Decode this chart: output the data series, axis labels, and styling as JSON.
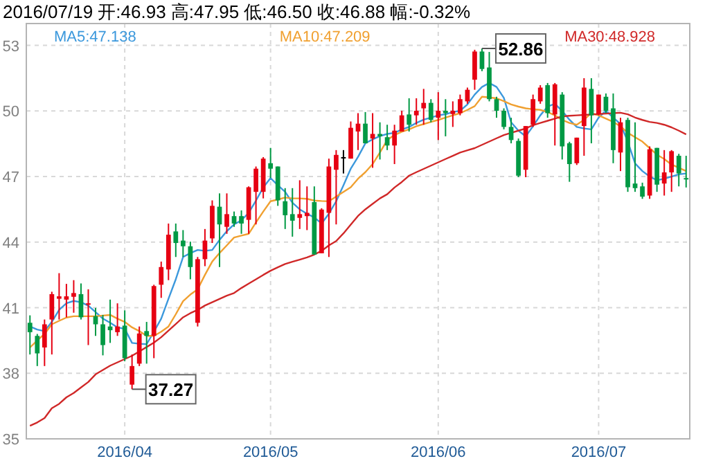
{
  "chart_data": {
    "type": "candlestick",
    "title": "2016/07/19 开:46.93 高:47.95 低:46.50 收:46.88 幅:-0.32%",
    "categories": [
      null,
      null,
      null,
      null,
      null,
      null,
      null,
      null,
      null,
      null,
      null,
      null,
      null,
      "2016/04",
      null,
      null,
      null,
      null,
      null,
      null,
      null,
      null,
      null,
      null,
      null,
      null,
      null,
      null,
      null,
      null,
      null,
      null,
      null,
      "2016/05",
      null,
      null,
      null,
      null,
      null,
      null,
      null,
      null,
      null,
      null,
      null,
      null,
      null,
      null,
      null,
      null,
      null,
      null,
      null,
      null,
      null,
      null,
      "2016/06",
      null,
      null,
      null,
      null,
      null,
      null,
      null,
      null,
      null,
      null,
      null,
      null,
      null,
      null,
      null,
      null,
      null,
      null,
      null,
      null,
      null,
      "2016/07",
      null,
      null,
      null,
      null,
      null,
      null,
      null,
      null,
      null,
      null,
      null,
      null
    ],
    "ohlc": [
      [
        40.31,
        40.65,
        38.86,
        39.88
      ],
      [
        39.71,
        39.8,
        38.33,
        38.91
      ],
      [
        39.18,
        40.46,
        38.33,
        40.24
      ],
      [
        40.46,
        41.73,
        38.86,
        41.62
      ],
      [
        41.41,
        42.58,
        40.46,
        41.52
      ],
      [
        41.37,
        42.09,
        40.56,
        41.52
      ],
      [
        41.5,
        42.26,
        40.77,
        41.67
      ],
      [
        41.62,
        42.11,
        40.46,
        40.56
      ],
      [
        41.16,
        41.84,
        39.29,
        41.2
      ],
      [
        40.61,
        40.99,
        39.71,
        40.24
      ],
      [
        40.24,
        40.67,
        38.82,
        39.29
      ],
      [
        40.14,
        41.37,
        39.39,
        39.97
      ],
      [
        39.88,
        41.2,
        39.71,
        40.14
      ],
      [
        40.18,
        40.88,
        38.55,
        38.69
      ],
      [
        37.48,
        38.86,
        37.27,
        38.33
      ],
      [
        38.44,
        40.14,
        38.33,
        39.82
      ],
      [
        39.93,
        40.35,
        38.44,
        39.71
      ],
      [
        39.71,
        42.05,
        38.69,
        41.99
      ],
      [
        42.05,
        43.11,
        41.45,
        42.86
      ],
      [
        42.75,
        44.85,
        42.26,
        44.34
      ],
      [
        44.49,
        44.85,
        43.32,
        43.96
      ],
      [
        44.07,
        44.55,
        43.32,
        43.81
      ],
      [
        43.81,
        44.02,
        42.3,
        42.86
      ],
      [
        40.31,
        43.32,
        40.14,
        43.22
      ],
      [
        43.22,
        44.6,
        42.9,
        44.07
      ],
      [
        44.17,
        45.91,
        43.96,
        45.66
      ],
      [
        45.62,
        46.23,
        42.86,
        44.81
      ],
      [
        44.7,
        46.23,
        44.38,
        45.28
      ],
      [
        45.19,
        45.4,
        44.7,
        44.85
      ],
      [
        45.19,
        45.45,
        44.38,
        44.85
      ],
      [
        45.02,
        46.55,
        44.38,
        46.51
      ],
      [
        46.3,
        47.46,
        44.81,
        47.36
      ],
      [
        46.3,
        47.89,
        46.0,
        47.82
      ],
      [
        47.61,
        48.31,
        46.93,
        47.36
      ],
      [
        47.46,
        47.46,
        45.66,
        45.91
      ],
      [
        45.87,
        46.47,
        44.6,
        45.23
      ],
      [
        45.28,
        46.47,
        44.25,
        44.98
      ],
      [
        45.11,
        46.83,
        44.6,
        45.28
      ],
      [
        45.19,
        46.55,
        44.55,
        45.34
      ],
      [
        45.83,
        46.55,
        43.43,
        43.43
      ],
      [
        43.49,
        45.55,
        43.49,
        45.49
      ],
      [
        45.34,
        47.82,
        43.32,
        47.46
      ],
      [
        47.31,
        48.21,
        44.81,
        47.99
      ],
      [
        47.89,
        48.21,
        47.14,
        47.89
      ],
      [
        47.82,
        49.52,
        47.82,
        49.23
      ],
      [
        49.06,
        49.9,
        48.21,
        49.42
      ],
      [
        49.42,
        49.95,
        48.52,
        48.52
      ],
      [
        48.74,
        49.9,
        47.4,
        48.95
      ],
      [
        48.95,
        49.48,
        47.78,
        48.84
      ],
      [
        48.8,
        49.37,
        48.21,
        48.42
      ],
      [
        48.42,
        49.37,
        47.57,
        49.1
      ],
      [
        49.06,
        50.01,
        49.06,
        49.8
      ],
      [
        49.84,
        50.58,
        49.06,
        49.37
      ],
      [
        49.8,
        50.58,
        49.37,
        50.01
      ],
      [
        50.12,
        51.01,
        49.37,
        50.37
      ],
      [
        50.37,
        50.54,
        49.48,
        49.59
      ],
      [
        49.69,
        50.86,
        48.67,
        50.01
      ],
      [
        50.01,
        50.54,
        48.84,
        49.9
      ],
      [
        49.86,
        50.44,
        49.27,
        50.01
      ],
      [
        49.9,
        50.75,
        49.8,
        50.54
      ],
      [
        50.44,
        51.07,
        50.33,
        50.97
      ],
      [
        51.43,
        52.8,
        50.97,
        52.72
      ],
      [
        52.72,
        52.86,
        51.82,
        51.92
      ],
      [
        51.99,
        52.7,
        50.44,
        50.54
      ],
      [
        50.54,
        50.65,
        49.69,
        50.01
      ],
      [
        50.01,
        50.12,
        49.16,
        49.27
      ],
      [
        49.27,
        49.69,
        48.52,
        48.67
      ],
      [
        48.63,
        48.74,
        46.97,
        47.04
      ],
      [
        47.31,
        49.31,
        46.97,
        49.31
      ],
      [
        49.37,
        50.75,
        49.27,
        50.54
      ],
      [
        50.44,
        51.18,
        50.33,
        51.07
      ],
      [
        51.18,
        51.28,
        49.69,
        49.9
      ],
      [
        49.84,
        51.28,
        48.42,
        51.22
      ],
      [
        50.75,
        50.86,
        47.78,
        48.38
      ],
      [
        48.52,
        48.59,
        46.76,
        47.57
      ],
      [
        47.61,
        48.78,
        47.53,
        48.78
      ],
      [
        49.31,
        51.5,
        47.95,
        51.07
      ],
      [
        51.01,
        51.5,
        48.52,
        49.8
      ],
      [
        49.86,
        50.75,
        49.8,
        50.75
      ],
      [
        50.65,
        50.8,
        49.9,
        50.01
      ],
      [
        50.12,
        50.8,
        47.61,
        48.21
      ],
      [
        48.1,
        49.69,
        47.25,
        49.48
      ],
      [
        49.59,
        49.69,
        46.3,
        46.51
      ],
      [
        46.68,
        49.48,
        46.3,
        46.47
      ],
      [
        46.55,
        46.72,
        45.98,
        46.08
      ],
      [
        46.13,
        48.38,
        45.98,
        48.25
      ],
      [
        48.31,
        48.31,
        46.3,
        46.63
      ],
      [
        46.68,
        48.21,
        46.13,
        47.19
      ],
      [
        47.19,
        48.21,
        46.3,
        48.16
      ],
      [
        47.95,
        48.04,
        46.55,
        47.14
      ],
      [
        46.93,
        47.95,
        46.5,
        46.88
      ]
    ],
    "colors": [
      "#009944",
      "#009944",
      "#e60012",
      "#e60012",
      "#e60012",
      "#e60012",
      "#e60012",
      "#009944",
      "#e60012",
      "#009944",
      "#009944",
      "#009944",
      "#e60012",
      "#009944",
      "#e60012",
      "#e60012",
      "#009944",
      "#e60012",
      "#e60012",
      "#e60012",
      "#009944",
      "#009944",
      "#009944",
      "#e60012",
      "#e60012",
      "#e60012",
      "#009944",
      "#e60012",
      "#009944",
      "#009944",
      "#e60012",
      "#e60012",
      "#e60012",
      "#009944",
      "#009944",
      "#009944",
      "#009944",
      "#e60012",
      "#e60012",
      "#009944",
      "#e60012",
      "#e60012",
      "#e60012",
      "#000000",
      "#e60012",
      "#e60012",
      "#009944",
      "#e60012",
      "#009944",
      "#009944",
      "#e60012",
      "#e60012",
      "#009944",
      "#e60012",
      "#e60012",
      "#009944",
      "#e60012",
      "#009944",
      "#e60012",
      "#e60012",
      "#e60012",
      "#e60012",
      "#009944",
      "#009944",
      "#009944",
      "#009944",
      "#009944",
      "#009944",
      "#e60012",
      "#e60012",
      "#e60012",
      "#009944",
      "#e60012",
      "#009944",
      "#009944",
      "#e60012",
      "#e60012",
      "#009944",
      "#e60012",
      "#009944",
      "#009944",
      "#e60012",
      "#009944",
      "#009944",
      "#009944",
      "#e60012",
      "#009944",
      "#e60012",
      "#e60012",
      "#009944",
      "#009944"
    ],
    "series": [
      {
        "name": "MA5:47.138",
        "type": "line",
        "color": "#3b98dc",
        "values": [
          40.14,
          40.0,
          39.93,
          40.35,
          40.9,
          41.2,
          41.31,
          41.25,
          41.09,
          40.8,
          40.5,
          40.31,
          40.1,
          40.03,
          39.39,
          39.35,
          39.33,
          39.9,
          40.5,
          41.41,
          42.3,
          43.32,
          43.5,
          43.64,
          43.6,
          43.64,
          44.1,
          44.5,
          44.81,
          45.0,
          45.34,
          45.9,
          46.5,
          46.93,
          46.6,
          46.3,
          45.8,
          45.5,
          45.3,
          45.13,
          44.85,
          45.3,
          45.87,
          46.6,
          47.36,
          47.9,
          48.52,
          48.7,
          48.85,
          48.95,
          49.0,
          49.15,
          49.27,
          49.45,
          49.6,
          49.7,
          49.8,
          49.85,
          49.95,
          50.01,
          50.3,
          50.75,
          51.1,
          51.28,
          51.1,
          50.6,
          49.48,
          49.1,
          48.84,
          49.3,
          49.8,
          50.2,
          50.33,
          50.0,
          49.6,
          49.27,
          49.2,
          49.16,
          49.7,
          50.01,
          49.7,
          49.4,
          48.6,
          47.6,
          47.25,
          47.0,
          46.83,
          46.9,
          47.0,
          47.1,
          47.14
        ]
      },
      {
        "name": "MA10:47.209",
        "type": "line",
        "color": "#f0a030",
        "values": [
          39.18,
          39.5,
          39.8,
          40.24,
          40.4,
          40.55,
          40.61,
          40.61,
          40.61,
          40.61,
          40.64,
          40.67,
          40.5,
          40.35,
          40.1,
          39.93,
          39.71,
          39.71,
          39.9,
          40.14,
          40.7,
          41.3,
          41.6,
          41.84,
          42.5,
          43.11,
          43.5,
          43.85,
          44.21,
          44.3,
          44.38,
          44.9,
          45.4,
          45.87,
          45.95,
          46.04,
          46.0,
          46.0,
          45.98,
          45.9,
          45.88,
          45.87,
          46.08,
          46.3,
          46.51,
          46.9,
          47.2,
          47.57,
          48.1,
          48.67,
          48.9,
          49.05,
          49.16,
          49.3,
          49.4,
          49.5,
          49.59,
          49.7,
          49.8,
          49.9,
          50.05,
          50.22,
          50.65,
          50.62,
          50.58,
          50.45,
          50.3,
          50.2,
          50.12,
          50.08,
          50.05,
          49.95,
          49.8,
          49.59,
          49.45,
          49.37,
          49.6,
          49.9,
          49.8,
          49.65,
          49.5,
          49.3,
          49.0,
          48.8,
          48.6,
          48.3,
          48.0,
          47.8,
          47.55,
          47.4,
          47.25
        ]
      },
      {
        "name": "MA30:48.928",
        "type": "line",
        "color": "#d02828",
        "values": [
          35.6,
          35.75,
          35.95,
          36.4,
          36.6,
          36.9,
          37.1,
          37.35,
          37.6,
          37.95,
          38.15,
          38.35,
          38.5,
          38.65,
          38.8,
          39.0,
          39.2,
          39.4,
          39.65,
          39.95,
          40.25,
          40.56,
          40.75,
          40.9,
          41.1,
          41.25,
          41.4,
          41.55,
          41.67,
          41.9,
          42.1,
          42.3,
          42.5,
          42.69,
          42.85,
          43.0,
          43.1,
          43.2,
          43.3,
          43.43,
          43.6,
          43.85,
          44.05,
          44.4,
          44.8,
          45.2,
          45.5,
          45.75,
          46.0,
          46.19,
          46.5,
          46.75,
          47.04,
          47.2,
          47.35,
          47.5,
          47.65,
          47.8,
          47.95,
          48.1,
          48.2,
          48.3,
          48.45,
          48.6,
          48.75,
          48.9,
          49.0,
          49.1,
          49.2,
          49.35,
          49.45,
          49.55,
          49.65,
          49.75,
          49.78,
          49.8,
          49.82,
          49.84,
          49.86,
          49.88,
          49.9,
          49.92,
          49.85,
          49.7,
          49.59,
          49.5,
          49.45,
          49.37,
          49.25,
          49.1,
          48.93
        ]
      }
    ],
    "ylim": [
      35,
      54
    ],
    "yticks": [
      35,
      38,
      41,
      44,
      47,
      50,
      53
    ],
    "grid": true,
    "legend": "top",
    "annotations": [
      {
        "text": "52.86",
        "y": 52.86
      },
      {
        "text": "37.27",
        "y": 37.27
      }
    ]
  }
}
